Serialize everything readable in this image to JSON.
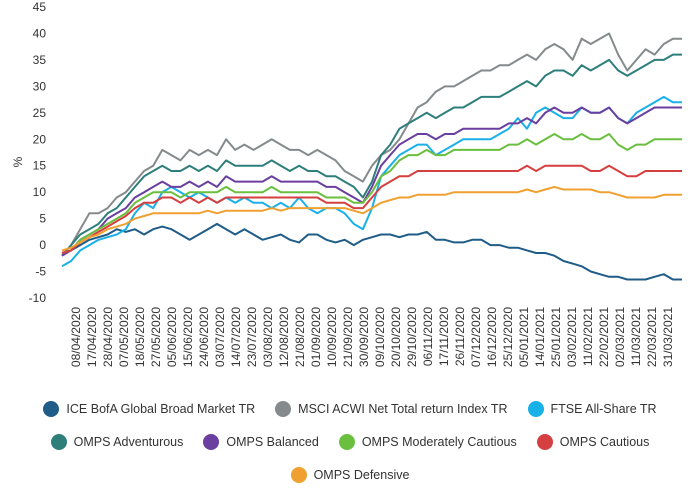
{
  "chart_data": {
    "type": "line",
    "ylabel": "%",
    "ylim": [
      -10,
      45
    ],
    "y_ticks": [
      "45",
      "40",
      "35",
      "30",
      "25",
      "20",
      "15",
      "10",
      "5",
      "0",
      "-5",
      "-10"
    ],
    "grid": false,
    "legend_position": "bottom",
    "x_ticks": [
      "08/04/2020",
      "17/04/2020",
      "28/04/2020",
      "07/05/2020",
      "18/05/2020",
      "27/05/2020",
      "05/06/2020",
      "15/06/2020",
      "24/06/2020",
      "03/07/2020",
      "14/07/2020",
      "23/07/2020",
      "03/08/2020",
      "12/08/2020",
      "21/08/2020",
      "01/09/2020",
      "10/09/2020",
      "21/09/2020",
      "30/09/2020",
      "09/10/2020",
      "20/10/2020",
      "29/10/2020",
      "06/11/2020",
      "17/11/2020",
      "26/11/2020",
      "07/12/2020",
      "16/12/2020",
      "25/12/2020",
      "05/01/2021",
      "14/01/2021",
      "25/01/2021",
      "03/02/2021",
      "11/02/2021",
      "22/02/2021",
      "02/03/2021",
      "11/03/2021",
      "22/03/2021",
      "31/03/2021"
    ],
    "series": [
      {
        "name": "ICE BofA Global Broad Market TR",
        "color": "#1f5c87",
        "values": [
          -1.5,
          -1,
          0,
          1,
          1.5,
          2,
          3,
          2.5,
          3,
          2,
          3,
          3.5,
          3,
          2,
          1,
          2,
          3,
          4,
          3,
          2,
          3,
          2,
          1,
          1.5,
          2,
          1,
          0.5,
          2,
          2,
          1,
          0.5,
          1,
          0,
          1,
          1.5,
          2,
          2,
          1.5,
          2,
          2,
          2.5,
          1,
          1,
          0.5,
          0.5,
          1,
          1,
          0,
          0,
          -0.5,
          -0.5,
          -1,
          -1.5,
          -1.5,
          -2,
          -3,
          -3.5,
          -4,
          -5,
          -5.5,
          -6,
          -6,
          -6.5,
          -6.5,
          -6.5,
          -6,
          -5.5,
          -6.5,
          -6.5
        ]
      },
      {
        "name": "MSCI ACWI Net Total return Index TR",
        "color": "#858a8c",
        "values": [
          -2,
          0,
          3,
          6,
          6,
          7,
          9,
          10,
          12,
          14,
          15,
          18,
          17,
          16,
          18,
          17,
          18,
          17,
          20,
          18,
          19,
          18,
          19,
          20,
          19,
          18,
          18,
          17,
          18,
          17,
          16,
          14,
          13,
          12,
          15,
          17,
          18,
          20,
          23,
          26,
          27,
          29,
          30,
          30,
          31,
          32,
          33,
          33,
          34,
          34,
          35,
          36,
          35,
          37,
          38,
          37,
          35,
          39,
          38,
          39,
          40,
          36,
          33,
          35,
          37,
          36,
          38,
          39,
          39
        ]
      },
      {
        "name": "FTSE All-Share TR",
        "color": "#1ab0e8",
        "values": [
          -4,
          -3,
          -1,
          0,
          1,
          1.5,
          2,
          3,
          6,
          8,
          7,
          10,
          11,
          10,
          9,
          10,
          9,
          8,
          9,
          8,
          9,
          8,
          8,
          7,
          8,
          7,
          9,
          7,
          6,
          7,
          7,
          6,
          4,
          3,
          7,
          13,
          15,
          17,
          18,
          19,
          19,
          17,
          18,
          19,
          20,
          20,
          20,
          20,
          21,
          22,
          24,
          22,
          25,
          26,
          25,
          24,
          24,
          26,
          25,
          25,
          26,
          24,
          23,
          25,
          26,
          27,
          28,
          27,
          27
        ]
      },
      {
        "name": "OMPS Adventurous",
        "color": "#2e7f7b",
        "values": [
          -2,
          0,
          2,
          3,
          4,
          6,
          7,
          9,
          11,
          13,
          14,
          15,
          14,
          14,
          15,
          14,
          15,
          14,
          16,
          15,
          15,
          15,
          15,
          16,
          15,
          14,
          15,
          14,
          14,
          13,
          13,
          12,
          11,
          9,
          12,
          17,
          19,
          22,
          23,
          24,
          25,
          24,
          25,
          26,
          26,
          27,
          28,
          28,
          28,
          29,
          30,
          31,
          30,
          32,
          33,
          33,
          32,
          34,
          33,
          34,
          35,
          33,
          32,
          33,
          34,
          35,
          35,
          36,
          36
        ]
      },
      {
        "name": "OMPS Balanced",
        "color": "#6a3fa0",
        "values": [
          -2,
          -1,
          1,
          2,
          3,
          5,
          6,
          7,
          9,
          10,
          11,
          12,
          11,
          11,
          12,
          11,
          12,
          11,
          13,
          12,
          12,
          12,
          12,
          13,
          12,
          12,
          12,
          12,
          12,
          11,
          11,
          10,
          9,
          8,
          11,
          15,
          17,
          19,
          20,
          21,
          21,
          20,
          21,
          21,
          22,
          22,
          22,
          22,
          22,
          23,
          23,
          24,
          23,
          25,
          26,
          25,
          25,
          26,
          25,
          25,
          26,
          24,
          23,
          24,
          25,
          26,
          26,
          26,
          26
        ]
      },
      {
        "name": "OMPS Moderately Cautious",
        "color": "#6abf3f",
        "values": [
          -1.5,
          -1,
          1,
          2,
          3,
          4,
          5,
          6,
          8,
          9,
          10,
          10,
          10,
          9,
          10,
          10,
          10,
          10,
          11,
          10,
          10,
          10,
          10,
          11,
          10,
          10,
          10,
          10,
          10,
          9,
          9,
          9,
          8,
          8,
          10,
          13,
          14,
          16,
          17,
          17,
          18,
          17,
          17,
          18,
          18,
          18,
          18,
          18,
          18,
          19,
          19,
          20,
          19,
          20,
          21,
          20,
          20,
          21,
          20,
          20,
          21,
          19,
          18,
          19,
          19,
          20,
          20,
          20,
          20
        ]
      },
      {
        "name": "OMPS Cautious",
        "color": "#d63f3f",
        "values": [
          -1.5,
          -1,
          0.5,
          1.5,
          2.5,
          3.5,
          4.5,
          5.5,
          7,
          8,
          8,
          9,
          9,
          8,
          9,
          8,
          9,
          8,
          9,
          9,
          9,
          9,
          9,
          9,
          9,
          9,
          9,
          9,
          9,
          8,
          8,
          8,
          7,
          7,
          9,
          11,
          12,
          13,
          13,
          14,
          14,
          14,
          14,
          14,
          14,
          14,
          14,
          14,
          14,
          14,
          14,
          15,
          14,
          15,
          15,
          15,
          15,
          15,
          14,
          14,
          15,
          14,
          13,
          13,
          14,
          14,
          14,
          14,
          14
        ]
      },
      {
        "name": "OMPS Defensive",
        "color": "#f0a030",
        "values": [
          -1,
          -0.5,
          0.5,
          1.5,
          2,
          3,
          3.5,
          4,
          5,
          5.5,
          6,
          6,
          6,
          6,
          6,
          6,
          6.5,
          6,
          6.5,
          6.5,
          6.5,
          6.5,
          6.5,
          7,
          6.5,
          7,
          7,
          7,
          7,
          7,
          7,
          7,
          6.5,
          6,
          7,
          8,
          8.5,
          9,
          9,
          9.5,
          9.5,
          9.5,
          9.5,
          10,
          10,
          10,
          10,
          10,
          10,
          10,
          10,
          10.5,
          10,
          10.5,
          11,
          10.5,
          10.5,
          10.5,
          10.5,
          10,
          10,
          9.5,
          9,
          9,
          9,
          9,
          9.5,
          9.5,
          9.5
        ]
      }
    ]
  }
}
